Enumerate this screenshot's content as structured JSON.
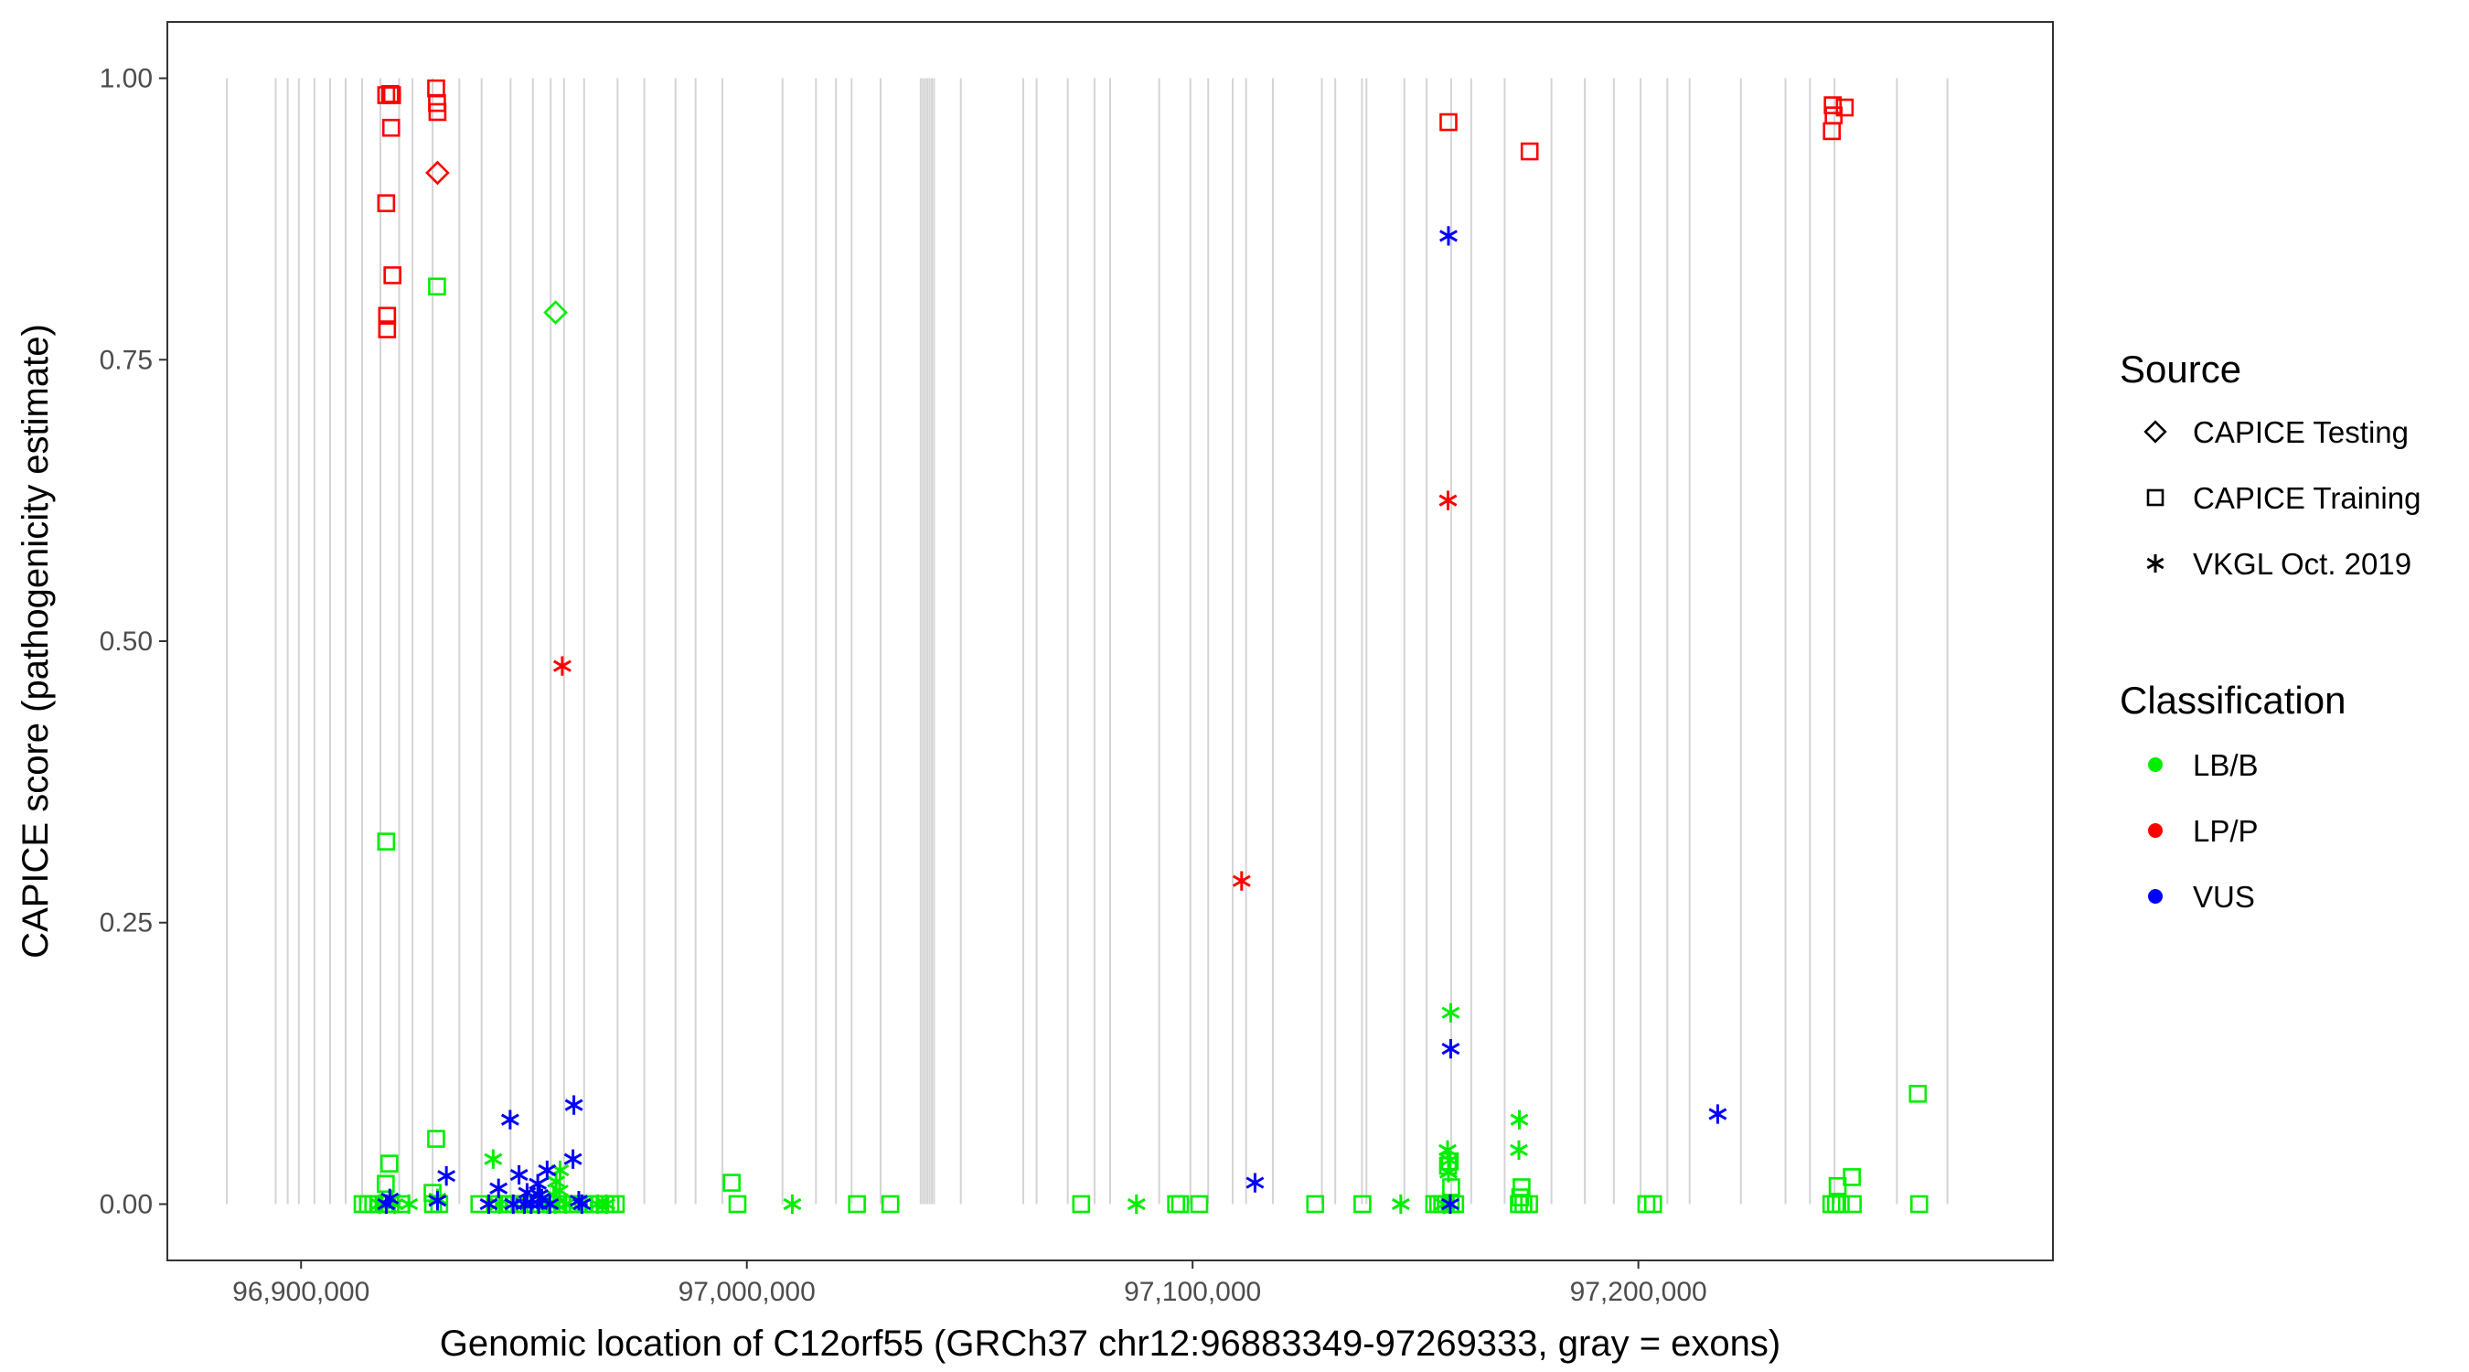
{
  "chart_data": {
    "type": "scatter",
    "title": "",
    "xlabel": "Genomic location of C12orf55 (GRCh37 chr12:96883349-97269333, gray = exons)",
    "ylabel": "CAPICE score (pathogenicity estimate)",
    "xlim": [
      96870000,
      97293000
    ],
    "ylim": [
      -0.05,
      1.05
    ],
    "x_ticks": [
      96900000,
      97000000,
      97100000,
      97200000
    ],
    "x_tick_labels": [
      "96,900,000",
      "97,000,000",
      "97,100,000",
      "97,200,000"
    ],
    "y_ticks": [
      0,
      0.25,
      0.5,
      0.75,
      1.0
    ],
    "y_tick_labels": [
      "0.00",
      "0.25",
      "0.50",
      "0.75",
      "1.00"
    ],
    "grid": false,
    "exons": [
      96883349,
      96894300,
      96897000,
      96899500,
      96903000,
      96906500,
      96910000,
      96913700,
      96917800,
      96922000,
      96925000,
      96929500,
      96935500,
      96940500,
      96947000,
      96952000,
      96956000,
      96959000,
      96963500,
      96971000,
      96977000,
      96984000,
      96988500,
      96994500,
      97008000,
      97015500,
      97020000,
      97023500,
      97030000,
      97039000,
      97039500,
      97040000,
      97040500,
      97041000,
      97041500,
      97042000,
      97048000,
      97062000,
      97065000,
      97072000,
      97078000,
      97081500,
      97092500,
      97099500,
      97103500,
      97109000,
      97112000,
      97118000,
      97129000,
      97132000,
      97138000,
      97139000,
      97147500,
      97152500,
      97158000,
      97162500,
      97170000,
      97180500,
      97188000,
      97194500,
      97200500,
      97206500,
      97211500,
      97223000,
      97233000,
      97238500,
      97244000,
      97258000,
      97269333
    ],
    "legend": {
      "source_title": "Source",
      "source_items": [
        {
          "label": "CAPICE Testing",
          "shape": "diamond"
        },
        {
          "label": "CAPICE Training",
          "shape": "square"
        },
        {
          "label": "VKGL Oct. 2019",
          "shape": "asterisk"
        }
      ],
      "class_title": "Classification",
      "class_items": [
        {
          "label": "LB/B",
          "color": "#00EE00"
        },
        {
          "label": "LP/P",
          "color": "#FF0000"
        },
        {
          "label": "VUS",
          "color": "#0000FF"
        }
      ]
    },
    "colors": {
      "LB/B": "#00EE00",
      "LP/P": "#FF0000",
      "VUS": "#0000FF"
    },
    "series": [
      {
        "source": "CAPICE Training",
        "classification": "LP/P",
        "points": [
          [
            96919100,
            0.985
          ],
          [
            96920000,
            0.986
          ],
          [
            96920400,
            0.985
          ],
          [
            96920200,
            0.956
          ],
          [
            96919100,
            0.889
          ],
          [
            96920500,
            0.825
          ],
          [
            96919300,
            0.789
          ],
          [
            96919300,
            0.777
          ],
          [
            96930300,
            0.991
          ],
          [
            96930500,
            0.978
          ],
          [
            96930600,
            0.97
          ],
          [
            97157400,
            0.961
          ],
          [
            97175600,
            0.935
          ],
          [
            97243600,
            0.976
          ],
          [
            97246300,
            0.974
          ],
          [
            97243800,
            0.967
          ],
          [
            97243400,
            0.953
          ]
        ]
      },
      {
        "source": "CAPICE Testing",
        "classification": "LP/P",
        "points": [
          [
            96930600,
            0.916
          ]
        ]
      },
      {
        "source": "CAPICE Testing",
        "classification": "LB/B",
        "points": [
          [
            96957100,
            0.792
          ]
        ]
      },
      {
        "source": "CAPICE Training",
        "classification": "LB/B",
        "points": [
          [
            96930500,
            0.815
          ],
          [
            96919100,
            0.322
          ],
          [
            96930300,
            0.058
          ],
          [
            96919800,
            0.036
          ],
          [
            96919000,
            0.018
          ],
          [
            96929500,
            0.01
          ],
          [
            96996600,
            0.019
          ],
          [
            97262700,
            0.098
          ],
          [
            97247900,
            0.024
          ],
          [
            97244700,
            0.016
          ],
          [
            97173800,
            0.015
          ],
          [
            97173500,
            0.006
          ],
          [
            97157700,
            0.038
          ],
          [
            97157300,
            0.034
          ],
          [
            97158000,
            0.015
          ],
          [
            96913800,
            0
          ],
          [
            96915000,
            0
          ],
          [
            96916200,
            0
          ],
          [
            96917500,
            0
          ],
          [
            96918800,
            0
          ],
          [
            96920000,
            0
          ],
          [
            96922400,
            0
          ],
          [
            96929600,
            0
          ],
          [
            96931000,
            0
          ],
          [
            96940000,
            0
          ],
          [
            96944200,
            0
          ],
          [
            96945500,
            0
          ],
          [
            96946800,
            0
          ],
          [
            96948000,
            0
          ],
          [
            96950000,
            0
          ],
          [
            96951300,
            0
          ],
          [
            96952500,
            0
          ],
          [
            96953800,
            0
          ],
          [
            96956200,
            0
          ],
          [
            96958600,
            0
          ],
          [
            96960800,
            0
          ],
          [
            96962000,
            0
          ],
          [
            96963300,
            0
          ],
          [
            96964600,
            0
          ],
          [
            96965800,
            0
          ],
          [
            96967000,
            0
          ],
          [
            96968200,
            0
          ],
          [
            96969400,
            0
          ],
          [
            96970600,
            0
          ],
          [
            96997900,
            0
          ],
          [
            97024700,
            0
          ],
          [
            97032200,
            0
          ],
          [
            97075000,
            0
          ],
          [
            97096300,
            0
          ],
          [
            97097200,
            0
          ],
          [
            97101500,
            0
          ],
          [
            97127500,
            0
          ],
          [
            97138100,
            0
          ],
          [
            97154200,
            0
          ],
          [
            97155100,
            0
          ],
          [
            97156000,
            0
          ],
          [
            97156800,
            0
          ],
          [
            97157900,
            0
          ],
          [
            97158900,
            0
          ],
          [
            97173200,
            0
          ],
          [
            97174200,
            0
          ],
          [
            97175500,
            0
          ],
          [
            97201800,
            0
          ],
          [
            97203300,
            0
          ],
          [
            97243300,
            0
          ],
          [
            97244300,
            0
          ],
          [
            97245400,
            0
          ],
          [
            97248100,
            0
          ],
          [
            97263000,
            0
          ]
        ]
      },
      {
        "source": "VKGL Oct. 2019",
        "classification": "LP/P",
        "points": [
          [
            96958600,
            0.478
          ],
          [
            97157300,
            0.625
          ],
          [
            97111000,
            0.287
          ]
        ]
      },
      {
        "source": "VKGL Oct. 2019",
        "classification": "LB/B",
        "points": [
          [
            97157900,
            0.17
          ],
          [
            97157200,
            0.048
          ],
          [
            97157700,
            0.039
          ],
          [
            97157400,
            0.028
          ],
          [
            97173300,
            0.075
          ],
          [
            97173200,
            0.048
          ],
          [
            96943100,
            0.04
          ],
          [
            96958100,
            0.03
          ],
          [
            96957200,
            0.02
          ],
          [
            96958000,
            0.012
          ],
          [
            96956700,
            0.008
          ],
          [
            96930600,
            0.005
          ],
          [
            96920400,
            0.004
          ],
          [
            97010200,
            0
          ],
          [
            97087400,
            0
          ],
          [
            97146700,
            0
          ],
          [
            96917600,
            0
          ],
          [
            96921000,
            0
          ],
          [
            96924200,
            0
          ],
          [
            96944500,
            0
          ],
          [
            96955300,
            0
          ],
          [
            96957000,
            0
          ],
          [
            96959400,
            0
          ],
          [
            96966500,
            0
          ],
          [
            96968500,
            0
          ],
          [
            97156400,
            0
          ]
        ]
      },
      {
        "source": "VKGL Oct. 2019",
        "classification": "VUS",
        "points": [
          [
            97157400,
            0.86
          ],
          [
            97157900,
            0.138
          ],
          [
            97217800,
            0.08
          ],
          [
            96961200,
            0.088
          ],
          [
            96946900,
            0.075
          ],
          [
            96961000,
            0.04
          ],
          [
            96955200,
            0.03
          ],
          [
            96948900,
            0.026
          ],
          [
            96953100,
            0.018
          ],
          [
            96944300,
            0.014
          ],
          [
            96932600,
            0.025
          ],
          [
            97114000,
            0.019
          ],
          [
            96950700,
            0.01
          ],
          [
            96953500,
            0.008
          ],
          [
            96954000,
            0.005
          ],
          [
            96919900,
            0.005
          ],
          [
            96930600,
            0.003
          ],
          [
            96962300,
            0.003
          ],
          [
            96919100,
            0
          ],
          [
            96942100,
            0
          ],
          [
            96947600,
            0
          ],
          [
            96950100,
            0
          ],
          [
            96951600,
            0
          ],
          [
            96953300,
            0
          ],
          [
            96955800,
            0
          ],
          [
            96963000,
            0
          ],
          [
            97157800,
            0
          ]
        ]
      }
    ]
  }
}
